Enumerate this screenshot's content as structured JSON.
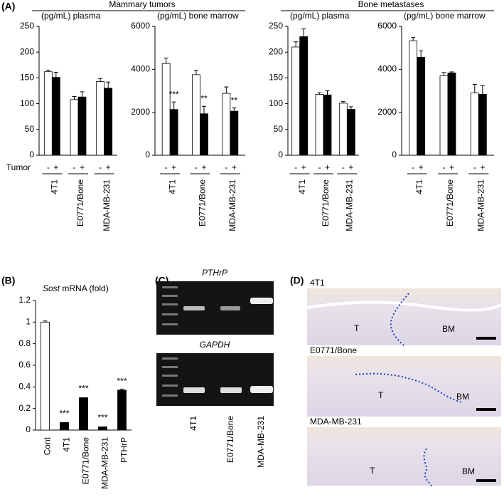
{
  "panel_labels": [
    "(A)",
    "(B)",
    "(C)",
    "(D)"
  ],
  "chart_data": [
    {
      "type": "bar",
      "group_title": "Mammary tumors",
      "ylabel": "(pg/mL) plasma",
      "row_label": "Tumor",
      "categories": [
        "4T1",
        "E0771/Bone",
        "MDA-MB-231"
      ],
      "series": [
        {
          "name": "-",
          "color": "#ffffff",
          "values": [
            162,
            108,
            143
          ],
          "errors": [
            3,
            6,
            6
          ]
        },
        {
          "name": "+",
          "color": "#000000",
          "values": [
            151,
            113,
            130
          ],
          "errors": [
            10,
            10,
            12
          ]
        }
      ],
      "ylim": [
        0,
        250
      ],
      "yticks": [
        0,
        50,
        100,
        150,
        200,
        250
      ]
    },
    {
      "type": "bar",
      "ylabel": "(pg/mL) bone marrow",
      "categories": [
        "4T1",
        "E0771/Bone",
        "MDA-MB-231"
      ],
      "series": [
        {
          "name": "-",
          "color": "#ffffff",
          "values": [
            4270,
            3750,
            2880
          ],
          "errors": [
            250,
            200,
            300
          ]
        },
        {
          "name": "+",
          "color": "#000000",
          "values": [
            2130,
            1930,
            2050
          ],
          "errors": [
            350,
            350,
            150
          ],
          "significance": [
            "***",
            "**",
            "**"
          ]
        }
      ],
      "ylim": [
        0,
        6000
      ],
      "yticks": [
        0,
        2000,
        4000,
        6000
      ]
    },
    {
      "type": "bar",
      "group_title": "Bone metastases",
      "ylabel": "(pg/mL) plasma",
      "categories": [
        "4T1",
        "E0771/Bone",
        "MDA-MB-231"
      ],
      "series": [
        {
          "name": "-",
          "color": "#ffffff",
          "values": [
            210,
            118,
            101
          ],
          "errors": [
            10,
            3,
            3
          ]
        },
        {
          "name": "+",
          "color": "#000000",
          "values": [
            230,
            117,
            89
          ],
          "errors": [
            15,
            8,
            5
          ]
        }
      ],
      "ylim": [
        0,
        250
      ],
      "yticks": [
        0,
        50,
        100,
        150,
        200,
        250
      ]
    },
    {
      "type": "bar",
      "ylabel": "(pg/mL) bone marrow",
      "categories": [
        "4T1",
        "E0771/Bone",
        "MDA-MB-231"
      ],
      "series": [
        {
          "name": "-",
          "color": "#ffffff",
          "values": [
            5330,
            3700,
            2900
          ],
          "errors": [
            150,
            150,
            400
          ]
        },
        {
          "name": "+",
          "color": "#000000",
          "values": [
            4560,
            3830,
            2840
          ],
          "errors": [
            300,
            50,
            400
          ]
        }
      ],
      "ylim": [
        0,
        6000
      ],
      "yticks": [
        0,
        2000,
        4000,
        6000
      ]
    },
    {
      "type": "bar",
      "ylabel_gene": "Sost",
      "ylabel": "mRNA (fold)",
      "categories": [
        "Cont",
        "4T1",
        "E0771/Bone",
        "MDA-MB-231",
        "PTHrP"
      ],
      "values": [
        1.0,
        0.07,
        0.3,
        0.03,
        0.37
      ],
      "errors": [
        0.01,
        0,
        0,
        0,
        0.01
      ],
      "colors": [
        "#ffffff",
        "#000000",
        "#000000",
        "#000000",
        "#000000"
      ],
      "significance": [
        null,
        "***",
        "***",
        "***",
        "***"
      ],
      "ylim": [
        0,
        1.2
      ],
      "yticks": [
        0,
        0.2,
        0.4,
        0.6,
        0.8,
        1,
        1.2
      ]
    }
  ],
  "gel": {
    "genes": [
      "PTHrP",
      "GAPDH"
    ],
    "lanes": [
      "4T1",
      "E0771/Bone",
      "MDA-MB-231"
    ]
  },
  "histology": {
    "images": [
      {
        "label": "4T1",
        "regions": [
          "T",
          "BM"
        ]
      },
      {
        "label": "E0771/Bone",
        "regions": [
          "T",
          "BM"
        ]
      },
      {
        "label": "MDA-MB-231",
        "regions": [
          "T",
          "BM"
        ]
      }
    ]
  }
}
